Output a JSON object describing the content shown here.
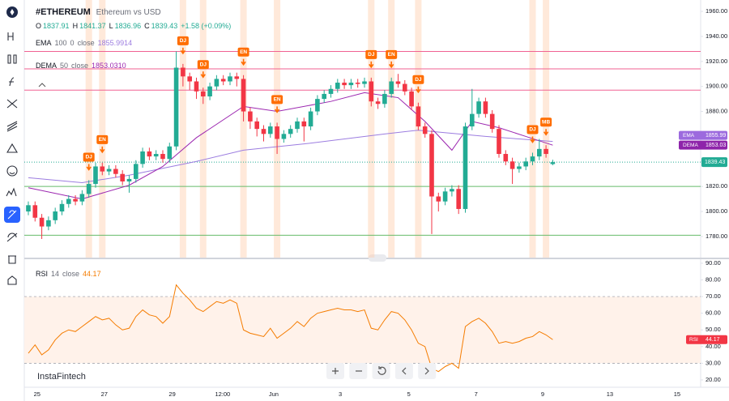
{
  "header": {
    "symbol": "#ETHEREUM",
    "description": "Ethereum vs USD",
    "ohlc_letters": [
      "O",
      "H",
      "L",
      "C"
    ],
    "change": "+1.58 (+0.09%)",
    "watermark": "InstaFintech"
  },
  "chart_data": [
    {
      "type": "candlestick",
      "open": [
        1800,
        1805,
        1795,
        1788,
        1793,
        1800,
        1806,
        1810,
        1808,
        1814,
        1822,
        1836,
        1832,
        1834,
        1830,
        1824,
        1826,
        1838,
        1848,
        1844,
        1846,
        1842,
        1852,
        1915,
        1908,
        1904,
        1896,
        1892,
        1900,
        1906,
        1904,
        1908,
        1906,
        1880,
        1872,
        1866,
        1862,
        1868,
        1858,
        1862,
        1866,
        1872,
        1868,
        1880,
        1890,
        1894,
        1898,
        1903,
        1901,
        1903,
        1902,
        1904,
        1888,
        1886,
        1894,
        1904,
        1902,
        1896,
        1884,
        1868,
        1862,
        1812,
        1808,
        1816,
        1818,
        1802,
        1868,
        1878,
        1888,
        1878,
        1866,
        1846,
        1840,
        1834,
        1836,
        1840,
        1844,
        1850,
        1837.91
      ],
      "high": [
        1808,
        1808,
        1798,
        1796,
        1803,
        1809,
        1813,
        1813,
        1817,
        1825,
        1839,
        1839,
        1837,
        1837,
        1833,
        1829,
        1841,
        1851,
        1851,
        1849,
        1849,
        1855,
        1928,
        1918,
        1911,
        1907,
        1899,
        1903,
        1909,
        1909,
        1911,
        1911,
        1909,
        1883,
        1875,
        1869,
        1871,
        1871,
        1865,
        1869,
        1875,
        1875,
        1883,
        1893,
        1897,
        1901,
        1906,
        1906,
        1906,
        1906,
        1907,
        1907,
        1891,
        1897,
        1907,
        1910,
        1905,
        1899,
        1887,
        1871,
        1865,
        1815,
        1819,
        1821,
        1821,
        1871,
        1898,
        1891,
        1891,
        1881,
        1869,
        1849,
        1843,
        1839,
        1843,
        1847,
        1858,
        1853,
        1841.37
      ],
      "low": [
        1797,
        1792,
        1778,
        1785,
        1790,
        1797,
        1803,
        1805,
        1805,
        1811,
        1819,
        1829,
        1829,
        1827,
        1821,
        1815,
        1823,
        1835,
        1841,
        1841,
        1839,
        1839,
        1849,
        1900,
        1897,
        1890,
        1886,
        1889,
        1897,
        1901,
        1901,
        1900,
        1872,
        1866,
        1860,
        1856,
        1859,
        1846,
        1855,
        1859,
        1863,
        1856,
        1865,
        1877,
        1887,
        1891,
        1895,
        1898,
        1898,
        1899,
        1899,
        1884,
        1882,
        1883,
        1891,
        1899,
        1893,
        1881,
        1865,
        1859,
        1782,
        1800,
        1805,
        1812,
        1798,
        1799,
        1865,
        1875,
        1875,
        1863,
        1843,
        1837,
        1822,
        1831,
        1833,
        1837,
        1841,
        1843,
        1836.96
      ],
      "close": [
        1805,
        1795,
        1788,
        1793,
        1800,
        1806,
        1810,
        1808,
        1814,
        1822,
        1836,
        1832,
        1834,
        1830,
        1824,
        1826,
        1838,
        1848,
        1844,
        1846,
        1842,
        1852,
        1915,
        1908,
        1904,
        1896,
        1892,
        1900,
        1906,
        1904,
        1908,
        1906,
        1880,
        1872,
        1866,
        1862,
        1868,
        1858,
        1862,
        1866,
        1872,
        1868,
        1880,
        1890,
        1894,
        1898,
        1903,
        1901,
        1903,
        1902,
        1904,
        1888,
        1886,
        1894,
        1904,
        1902,
        1896,
        1884,
        1868,
        1862,
        1812,
        1808,
        1816,
        1818,
        1802,
        1868,
        1878,
        1888,
        1878,
        1866,
        1846,
        1840,
        1834,
        1836,
        1840,
        1844,
        1850,
        1846,
        1839.43
      ],
      "up_color": "#22ab94",
      "down_color": "#f23645",
      "indicators": [
        {
          "name": "EMA",
          "params": [
            100,
            0,
            "close"
          ],
          "color": "#9c7de0",
          "tag_color": "#9c6ade",
          "x": [
            0,
            8,
            15,
            25,
            32,
            41,
            53,
            58,
            68,
            73,
            78
          ],
          "values": [
            1827,
            1823,
            1829,
            1840,
            1849,
            1854,
            1862,
            1865,
            1860,
            1858,
            1855.9914
          ],
          "tag_label": "1855.99"
        },
        {
          "name": "DEMA",
          "params": [
            50,
            "close"
          ],
          "color": "#9c27b0",
          "tag_color": "#8e24aa",
          "x": [
            0,
            8,
            15,
            20,
            25,
            32,
            37,
            45,
            50,
            55,
            59,
            63,
            66,
            70,
            74,
            78
          ],
          "values": [
            1819,
            1810,
            1821,
            1836,
            1859,
            1884,
            1880,
            1888,
            1895,
            1891,
            1872,
            1849,
            1872,
            1867,
            1860,
            1853.031
          ],
          "legend_value_label": "1853.0310",
          "tag_label": "1853.03"
        }
      ],
      "levels": [
        {
          "value": 1928,
          "color": "#f06292"
        },
        {
          "value": 1914,
          "color": "#f06292"
        },
        {
          "value": 1897,
          "color": "#f06292"
        },
        {
          "value": 1820,
          "color": "#66bb6a"
        },
        {
          "value": 1781,
          "color": "#66bb6a"
        }
      ],
      "events": [
        {
          "candle": 9,
          "label": "DJ"
        },
        {
          "candle": 11,
          "label": "EN"
        },
        {
          "candle": 23,
          "label": "DJ"
        },
        {
          "candle": 26,
          "label": "DJ"
        },
        {
          "candle": 32,
          "label": "EN"
        },
        {
          "candle": 37,
          "label": "EN"
        },
        {
          "candle": 51,
          "label": "DJ"
        },
        {
          "candle": 54,
          "label": "EN"
        },
        {
          "candle": 58,
          "label": "DJ"
        },
        {
          "candle": 75,
          "label": "DJ"
        },
        {
          "candle": 77,
          "label": "MB"
        }
      ],
      "event_color": "#ff6d00",
      "xlim": [
        -0.6,
        100
      ],
      "xticks": [
        {
          "value": 1.3,
          "label": "25"
        },
        {
          "value": 11.3,
          "label": "27"
        },
        {
          "value": 21.4,
          "label": "29"
        },
        {
          "value": 28.9,
          "label": "12:00"
        },
        {
          "value": 36.5,
          "label": "Jun"
        },
        {
          "value": 46.4,
          "label": "3"
        },
        {
          "value": 56.6,
          "label": "5"
        },
        {
          "value": 66.6,
          "label": "7"
        },
        {
          "value": 76.5,
          "label": "9"
        },
        {
          "value": 86.5,
          "label": "13"
        },
        {
          "value": 96.5,
          "label": "15"
        }
      ],
      "ylim": [
        1763.1,
        1969.1
      ],
      "yticks": [
        {
          "value": 1960,
          "label": "1960.00"
        },
        {
          "value": 1940,
          "label": "1940.00"
        },
        {
          "value": 1920,
          "label": "1920.00"
        },
        {
          "value": 1900,
          "label": "1900.00"
        },
        {
          "value": 1880,
          "label": "1880.00"
        },
        {
          "value": 1860,
          "label": "1860.00"
        },
        {
          "value": 1840,
          "label": "1840.00"
        },
        {
          "value": 1820,
          "label": "1820.00"
        },
        {
          "value": 1800,
          "label": "1800.00"
        },
        {
          "value": 1780,
          "label": "1780.00"
        }
      ],
      "grid": false
    },
    {
      "type": "line",
      "name": "RSI",
      "params": [
        14,
        "close"
      ],
      "color": "#f57c00",
      "tag_color": "#f23645",
      "values": [
        36,
        41,
        35,
        38,
        44,
        48,
        50,
        49,
        52,
        55,
        58,
        56,
        57,
        53,
        50,
        51,
        58,
        62,
        59,
        58,
        54,
        58,
        77,
        72,
        68,
        63,
        61,
        64,
        67,
        66,
        68,
        66,
        50,
        48,
        47,
        46,
        51,
        45,
        48,
        51,
        55,
        52,
        57,
        60,
        61,
        62,
        63,
        62,
        62,
        61,
        62,
        51,
        50,
        56,
        61,
        60,
        56,
        50,
        42,
        40,
        27,
        25,
        28,
        30,
        27,
        52,
        55,
        57,
        54,
        49,
        42,
        43,
        42,
        43,
        45,
        46,
        49,
        47,
        44.17
      ],
      "levels": [
        70,
        30
      ],
      "ylim": [
        15.6,
        92.4
      ],
      "yticks": [
        {
          "value": 90,
          "label": "90.00"
        },
        {
          "value": 80,
          "label": "80.00"
        },
        {
          "value": 70,
          "label": "70.00"
        },
        {
          "value": 60,
          "label": "60.00"
        },
        {
          "value": 50,
          "label": "50.00"
        },
        {
          "value": 40,
          "label": "40.00"
        },
        {
          "value": 30,
          "label": "30.00"
        },
        {
          "value": 20,
          "label": "20.00"
        }
      ],
      "grid": false
    }
  ]
}
